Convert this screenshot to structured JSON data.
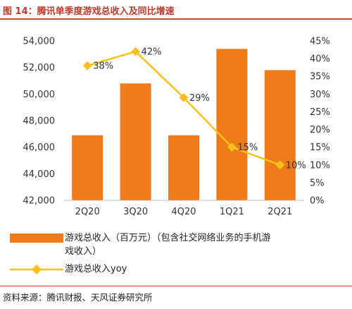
{
  "header": {
    "title": "图 14：腾讯单季度游戏总收入及同比增速"
  },
  "chart_data": {
    "type": "bar",
    "categories": [
      "2Q20",
      "3Q20",
      "4Q20",
      "1Q21",
      "2Q21"
    ],
    "series": [
      {
        "name": "游戏总收入（百万元）（包含社交网络业务的手机游戏收入）",
        "type": "bar",
        "axis": "left",
        "values": [
          46900,
          50800,
          46900,
          53400,
          51800
        ],
        "color": "#ef7a1a"
      },
      {
        "name": "游戏总收入yoy",
        "type": "line",
        "axis": "right",
        "values": [
          38,
          42,
          29,
          15,
          10
        ],
        "color": "#fbbf18"
      }
    ],
    "data_labels": [
      "38%",
      "42%",
      "29%",
      "15%",
      "10%"
    ],
    "y_left": {
      "min": 42000,
      "max": 54000,
      "ticks": [
        "42,000",
        "44,000",
        "46,000",
        "48,000",
        "50,000",
        "52,000",
        "54,000"
      ]
    },
    "y_right": {
      "min": 0,
      "max": 45,
      "ticks": [
        "0%",
        "5%",
        "10%",
        "15%",
        "20%",
        "25%",
        "30%",
        "35%",
        "40%",
        "45%"
      ]
    },
    "grid": false,
    "legend_position": "bottom-left"
  },
  "legend": {
    "bar_label_line1": "游戏总收入（百万元）（包含社交网络业务的手机游",
    "bar_label_line2": "戏收入）",
    "line_label": "游戏总收入yoy"
  },
  "footer": {
    "source": "资料来源：腾讯财报、天风证券研究所"
  }
}
